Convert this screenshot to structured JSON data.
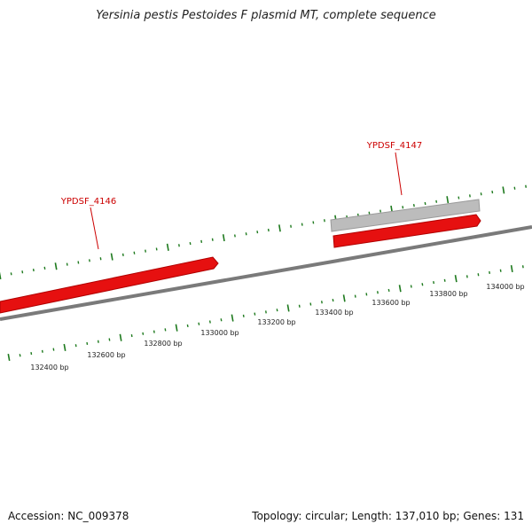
{
  "title": "Yersinia pestis Pestoides F plasmid MT, complete sequence",
  "colors": {
    "gene_fwd": "#e61010",
    "gene_grey": "#bcbcbc",
    "backbone": "#7a7a7a",
    "tick": "#1e7a1e",
    "label": "#cc0000"
  },
  "genes": [
    {
      "id": "gene-ypdsf-4146",
      "label": "YPDSF_4146",
      "color": "#e61010",
      "strand": "forward"
    },
    {
      "id": "gene-ypdsf-4147",
      "label": "YPDSF_4147",
      "color": "#e61010",
      "strand": "forward"
    },
    {
      "id": "orf-grey",
      "label": "",
      "color": "#bcbcbc",
      "strand": "forward"
    }
  ],
  "scale_labels": [
    "132400 bp",
    "132600 bp",
    "132800 bp",
    "133000 bp",
    "133200 bp",
    "133400 bp",
    "133600 bp",
    "133800 bp",
    "134000 bp"
  ],
  "footer": {
    "accession": "Accession: NC_009378",
    "summary": "Topology: circular; Length: 137,010 bp; Genes: 131"
  }
}
